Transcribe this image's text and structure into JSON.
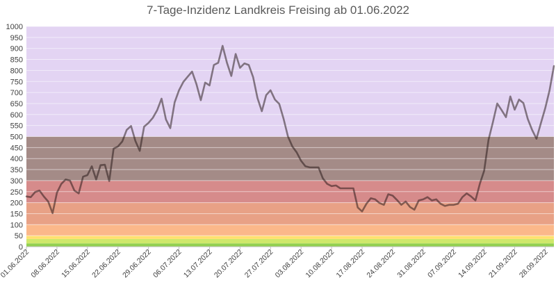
{
  "chart_data": {
    "type": "line",
    "title": "7-Tage-Inzidenz Landkreis Freising ab 01.06.2022",
    "xlabel": "",
    "ylabel": "",
    "ylim": [
      0,
      1000
    ],
    "grid": true,
    "yticks": [
      0,
      50,
      100,
      150,
      200,
      250,
      300,
      350,
      400,
      450,
      500,
      550,
      600,
      650,
      700,
      750,
      800,
      850,
      900,
      950,
      1000
    ],
    "xtick_labels": [
      "01.06.2022",
      "08.06.2022",
      "15.06.2022",
      "22.06.2022",
      "29.06.2022",
      "06.07.2022",
      "13.07.2022",
      "20.07.2022",
      "27.07.2022",
      "03.08.2022",
      "10.08.2022",
      "17.08.2022",
      "24.08.2022",
      "31.08.2022",
      "07.09.2022",
      "14.09.2022",
      "21.09.2022",
      "28.09.2022"
    ],
    "bands": [
      {
        "from": 0,
        "to": 15,
        "color": "#92d050"
      },
      {
        "from": 15,
        "to": 35,
        "color": "#cfe86b"
      },
      {
        "from": 35,
        "to": 50,
        "color": "#ffe070"
      },
      {
        "from": 50,
        "to": 100,
        "color": "#fbb88a"
      },
      {
        "from": 100,
        "to": 200,
        "color": "#e8a186"
      },
      {
        "from": 200,
        "to": 300,
        "color": "#d68b8b"
      },
      {
        "from": 300,
        "to": 500,
        "color": "#a48b87"
      },
      {
        "from": 500,
        "to": 1000,
        "color": "#e3d4f3"
      }
    ],
    "line_color": "#1e1010",
    "series": [
      {
        "values": [
          228,
          225,
          248,
          255,
          228,
          205,
          152,
          245,
          285,
          305,
          300,
          255,
          242,
          318,
          325,
          365,
          305,
          370,
          372,
          298,
          445,
          455,
          478,
          530,
          548,
          480,
          435,
          545,
          562,
          585,
          620,
          672,
          578,
          538,
          655,
          710,
          748,
          772,
          795,
          738,
          665,
          745,
          732,
          825,
          835,
          912,
          835,
          775,
          875,
          812,
          832,
          825,
          770,
          675,
          615,
          688,
          710,
          668,
          648,
          580,
          500,
          455,
          428,
          390,
          365,
          360,
          360,
          360,
          310,
          285,
          275,
          278,
          265,
          265,
          265,
          265,
          178,
          160,
          195,
          220,
          215,
          198,
          190,
          238,
          232,
          212,
          190,
          205,
          180,
          168,
          210,
          215,
          225,
          210,
          215,
          195,
          185,
          190,
          190,
          195,
          225,
          242,
          228,
          210,
          285,
          345,
          485,
          565,
          650,
          620,
          588,
          682,
          622,
          668,
          652,
          580,
          530,
          490,
          560,
          628,
          710,
          820
        ]
      }
    ]
  }
}
